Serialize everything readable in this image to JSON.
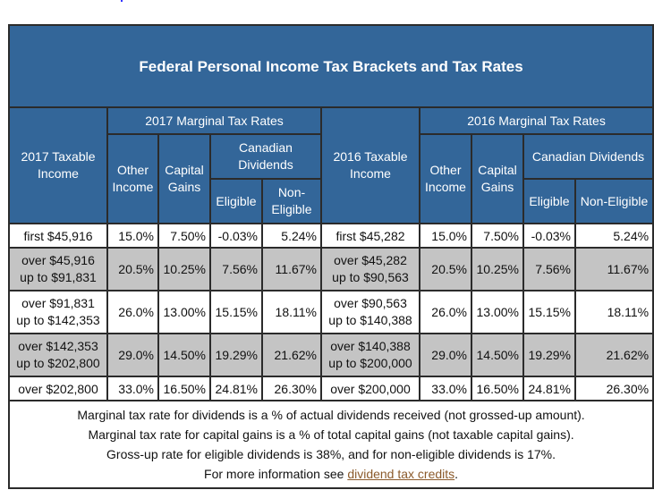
{
  "title": "Federal Personal Income Tax Brackets and Tax Rates",
  "headers": {
    "income_2017": "2017 Taxable Income",
    "rates_2017": "2017 Marginal Tax Rates",
    "income_2016": "2016 Taxable Income",
    "rates_2016": "2016 Marginal Tax Rates",
    "other_income": "Other Income",
    "capital_gains": "Capital Gains",
    "canadian_dividends": "Canadian Dividends",
    "eligible": "Eligible",
    "non_eligible": "Non-Eligible"
  },
  "rows": [
    {
      "inc17": "first $45,916",
      "o17": "15.0%",
      "c17": "7.50%",
      "e17": "-0.03%",
      "n17": "5.24%",
      "inc16": "first $45,282",
      "o16": "15.0%",
      "c16": "7.50%",
      "e16": "-0.03%",
      "n16": "5.24%"
    },
    {
      "inc17": "over $45,916 up to $91,831",
      "o17": "20.5%",
      "c17": "10.25%",
      "e17": "7.56%",
      "n17": "11.67%",
      "inc16": "over $45,282 up to $90,563",
      "o16": "20.5%",
      "c16": "10.25%",
      "e16": "7.56%",
      "n16": "11.67%"
    },
    {
      "inc17": "over $91,831 up to $142,353",
      "o17": "26.0%",
      "c17": "13.00%",
      "e17": "15.15%",
      "n17": "18.11%",
      "inc16": "over $90,563 up to $140,388",
      "o16": "26.0%",
      "c16": "13.00%",
      "e16": "15.15%",
      "n16": "18.11%"
    },
    {
      "inc17": "over $142,353 up to $202,800",
      "o17": "29.0%",
      "c17": "14.50%",
      "e17": "19.29%",
      "n17": "21.62%",
      "inc16": "over $140,388 up to $200,000",
      "o16": "29.0%",
      "c16": "14.50%",
      "e16": "19.29%",
      "n16": "21.62%"
    },
    {
      "inc17": "over $202,800",
      "o17": "33.0%",
      "c17": "16.50%",
      "e17": "24.81%",
      "n17": "26.30%",
      "inc16": "over $200,000",
      "o16": "33.0%",
      "c16": "16.50%",
      "e16": "24.81%",
      "n16": "26.30%"
    }
  ],
  "notes": [
    "Marginal tax rate for dividends is a % of actual dividends received (not grossed-up amount).",
    "Marginal tax rate for capital gains is a % of total capital gains (not taxable capital gains).",
    "Gross-up rate for eligible dividends is 38%, and for non-eligible dividends is 17%."
  ],
  "more_info_prefix": "For more information see ",
  "more_info_link": "dividend tax credits",
  "more_info_suffix": "."
}
